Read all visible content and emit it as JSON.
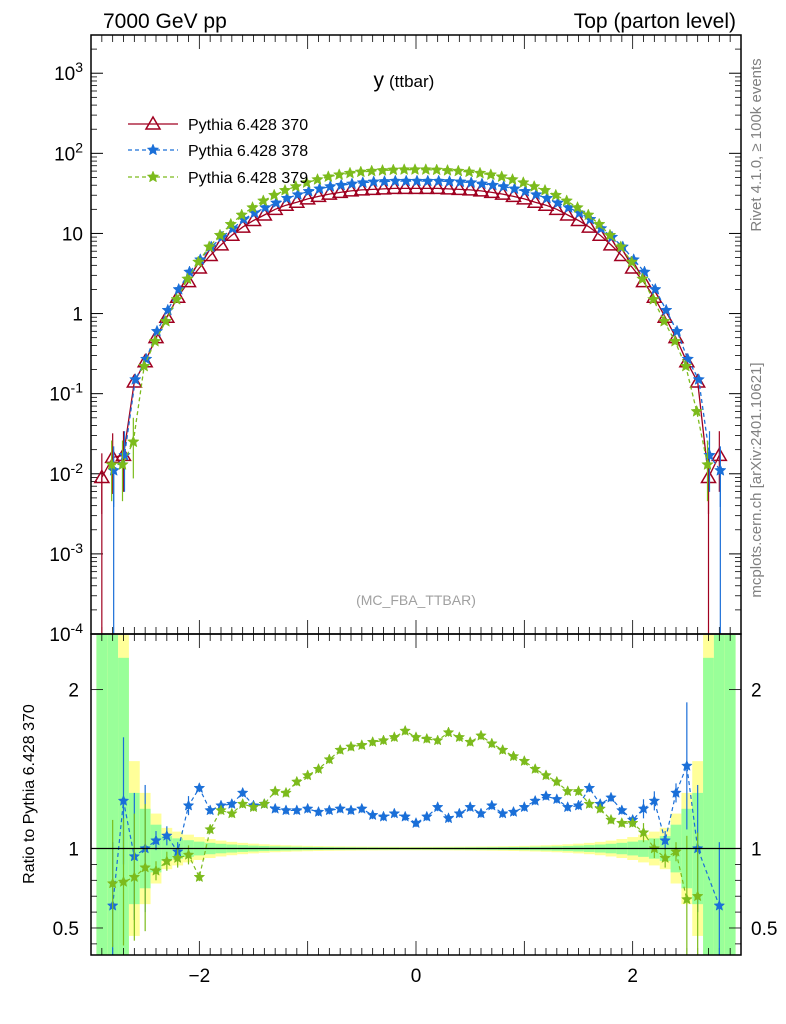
{
  "header": {
    "left_title": "7000 GeV pp",
    "right_title": "Top (parton level)"
  },
  "plot": {
    "title": "y",
    "title_sub": "(ttbar)",
    "watermark": "(MC_FBA_TTBAR)",
    "side_label_top": "Rivet 4.1.0, ≥ 100k events",
    "side_label_bottom": "mcplots.cern.ch [arXiv:2401.10621]"
  },
  "colors": {
    "pythia370": "#a00020",
    "pythia378": "#1a6fd8",
    "pythia379": "#7cbb1c",
    "band_yellow": "#ffff99",
    "band_green": "#99ff99"
  },
  "chart_data": [
    {
      "type": "line",
      "title": "y (ttbar)",
      "xlabel": "",
      "ylabel": "",
      "yscale": "log",
      "xlim": [
        -3.0,
        3.0
      ],
      "ylim": [
        0.0001,
        3000
      ],
      "yticks": [
        "10^-4",
        "10^-3",
        "10^-2",
        "10^-1",
        "1",
        "10",
        "10^2",
        "10^3"
      ],
      "legend_position": "top-left",
      "x": [
        -2.9,
        -2.8,
        -2.7,
        -2.6,
        -2.5,
        -2.4,
        -2.3,
        -2.2,
        -2.1,
        -2.0,
        -1.9,
        -1.8,
        -1.7,
        -1.6,
        -1.5,
        -1.4,
        -1.3,
        -1.2,
        -1.1,
        -1.0,
        -0.9,
        -0.8,
        -0.7,
        -0.6,
        -0.5,
        -0.4,
        -0.3,
        -0.2,
        -0.1,
        0.0,
        0.1,
        0.2,
        0.3,
        0.4,
        0.5,
        0.6,
        0.7,
        0.8,
        0.9,
        1.0,
        1.1,
        1.2,
        1.3,
        1.4,
        1.5,
        1.6,
        1.7,
        1.8,
        1.9,
        2.0,
        2.1,
        2.2,
        2.3,
        2.4,
        2.5,
        2.6,
        2.7,
        2.8,
        2.9
      ],
      "series": [
        {
          "name": "Pythia 6.428 370",
          "marker": "triangle",
          "values": [
            0.009,
            0.016,
            0.017,
            0.14,
            0.25,
            0.5,
            0.9,
            1.6,
            2.5,
            3.7,
            5.3,
            7.2,
            9.5,
            12.0,
            14.5,
            17.0,
            20.0,
            22.5,
            24.5,
            27.0,
            29.0,
            31.0,
            32.5,
            34.0,
            35.0,
            35.5,
            36.0,
            36.5,
            36.5,
            36.5,
            36.5,
            36.5,
            36.0,
            35.5,
            35.0,
            34.0,
            32.5,
            31.0,
            29.0,
            27.0,
            24.5,
            22.5,
            20.0,
            17.0,
            14.5,
            12.0,
            9.5,
            7.2,
            5.3,
            3.7,
            2.5,
            1.6,
            0.9,
            0.5,
            0.25,
            0.14,
            0.009,
            0.017,
            null
          ]
        },
        {
          "name": "Pythia 6.428 378",
          "marker": "star",
          "values": [
            null,
            0.011,
            0.017,
            0.15,
            0.27,
            0.6,
            1.1,
            2.0,
            3.3,
            4.7,
            6.8,
            9.0,
            11.5,
            15.0,
            18.0,
            21.0,
            24.0,
            27.5,
            30.5,
            33.5,
            36.0,
            38.5,
            40.0,
            41.5,
            43.0,
            44.0,
            44.5,
            45.0,
            45.0,
            45.0,
            45.0,
            45.0,
            44.5,
            44.0,
            43.0,
            41.5,
            40.0,
            38.5,
            36.0,
            33.5,
            30.5,
            27.5,
            24.0,
            21.0,
            18.0,
            15.0,
            11.5,
            9.0,
            6.8,
            4.7,
            3.3,
            2.0,
            1.1,
            0.6,
            0.27,
            0.15,
            0.017,
            0.011,
            null
          ]
        },
        {
          "name": "Pythia 6.428 379",
          "marker": "star",
          "values": [
            null,
            0.013,
            0.013,
            0.025,
            0.22,
            0.45,
            0.8,
            1.5,
            2.7,
            4.4,
            6.8,
            9.5,
            13.0,
            17.0,
            21.0,
            25.5,
            30.0,
            34.5,
            38.5,
            43.0,
            47.0,
            51.0,
            54.0,
            56.5,
            58.5,
            60.0,
            61.0,
            62.0,
            62.5,
            62.5,
            62.5,
            62.0,
            61.0,
            60.0,
            58.5,
            56.5,
            54.0,
            51.0,
            47.0,
            43.0,
            38.5,
            34.5,
            30.0,
            25.5,
            21.0,
            17.0,
            13.0,
            9.5,
            6.8,
            4.4,
            2.7,
            1.5,
            0.8,
            0.45,
            0.22,
            0.06,
            0.013,
            null,
            null
          ]
        }
      ]
    },
    {
      "type": "line",
      "title": "",
      "xlabel": "",
      "ylabel": "Ratio to Pythia 6.428 370",
      "xlim": [
        -3.0,
        3.0
      ],
      "ylim": [
        0.33,
        2.35
      ],
      "xticks": [
        "−2",
        "0",
        "2"
      ],
      "yticks": [
        "0.5",
        "1",
        "2"
      ],
      "x": [
        -2.8,
        -2.7,
        -2.6,
        -2.5,
        -2.4,
        -2.3,
        -2.2,
        -2.1,
        -2.0,
        -1.9,
        -1.8,
        -1.7,
        -1.6,
        -1.5,
        -1.4,
        -1.3,
        -1.2,
        -1.1,
        -1.0,
        -0.9,
        -0.8,
        -0.7,
        -0.6,
        -0.5,
        -0.4,
        -0.3,
        -0.2,
        -0.1,
        0.0,
        0.1,
        0.2,
        0.3,
        0.4,
        0.5,
        0.6,
        0.7,
        0.8,
        0.9,
        1.0,
        1.1,
        1.2,
        1.3,
        1.4,
        1.5,
        1.6,
        1.7,
        1.8,
        1.9,
        2.0,
        2.1,
        2.2,
        2.3,
        2.4,
        2.5,
        2.6,
        2.8
      ],
      "series": [
        {
          "name": "Pythia 6.428 378",
          "values": [
            0.64,
            1.3,
            0.95,
            1.0,
            1.05,
            1.08,
            0.98,
            1.27,
            1.38,
            1.24,
            1.27,
            1.28,
            1.35,
            1.27,
            1.28,
            1.25,
            1.24,
            1.24,
            1.25,
            1.23,
            1.24,
            1.25,
            1.24,
            1.25,
            1.21,
            1.2,
            1.22,
            1.2,
            1.16,
            1.2,
            1.26,
            1.19,
            1.22,
            1.26,
            1.22,
            1.27,
            1.22,
            1.23,
            1.26,
            1.3,
            1.33,
            1.31,
            1.26,
            1.27,
            1.38,
            1.28,
            1.32,
            1.24,
            1.18,
            1.25,
            1.3,
            1.05,
            1.35,
            1.52,
            1.0,
            0.64
          ]
        },
        {
          "name": "Pythia 6.428 379",
          "values": [
            0.78,
            0.79,
            0.82,
            0.88,
            0.86,
            0.92,
            0.94,
            0.96,
            0.82,
            1.12,
            1.24,
            1.22,
            1.28,
            1.26,
            1.28,
            1.36,
            1.35,
            1.42,
            1.46,
            1.5,
            1.56,
            1.62,
            1.64,
            1.65,
            1.67,
            1.68,
            1.7,
            1.74,
            1.7,
            1.69,
            1.68,
            1.73,
            1.7,
            1.67,
            1.71,
            1.66,
            1.62,
            1.58,
            1.55,
            1.5,
            1.46,
            1.42,
            1.36,
            1.36,
            1.28,
            1.25,
            1.18,
            1.16,
            1.16,
            1.1,
            1.0,
            0.94,
            0.98,
            0.68,
            0.7,
            null
          ]
        }
      ]
    }
  ]
}
